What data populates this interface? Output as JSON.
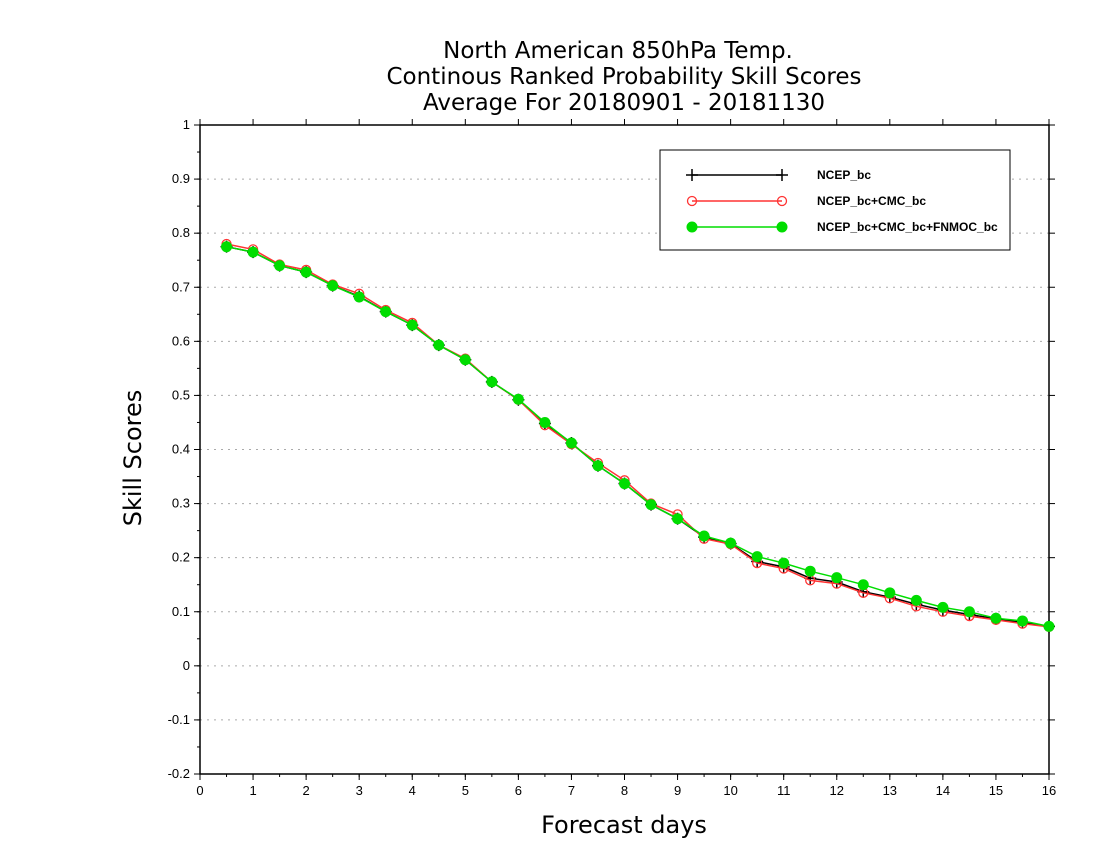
{
  "chart_data": {
    "type": "line",
    "title_lines": [
      "North American 850hPa Temp.",
      "Continous Ranked Probability Skill Scores",
      "Average For 20180901 - 20181130"
    ],
    "xlabel": "Forecast days",
    "ylabel": "Skill Scores",
    "xlim": [
      0,
      16
    ],
    "ylim": [
      -0.2,
      1
    ],
    "x_ticks": [
      0,
      1,
      2,
      3,
      4,
      5,
      6,
      7,
      8,
      9,
      10,
      11,
      12,
      13,
      14,
      15,
      16
    ],
    "x_tick_labels": [
      "0",
      "1",
      "2",
      "3",
      "4",
      "5",
      "6",
      "7",
      "8",
      "9",
      "10",
      "11",
      "12",
      "13",
      "14",
      "15",
      "16"
    ],
    "y_ticks": [
      -0.2,
      -0.1,
      0,
      0.1,
      0.2,
      0.3,
      0.4,
      0.5,
      0.6,
      0.7,
      0.8,
      0.9,
      1
    ],
    "y_tick_labels": [
      "-0.2",
      "-0.1",
      "0",
      "0.1",
      "0.2",
      "0.3",
      "0.4",
      "0.5",
      "0.6",
      "0.7",
      "0.8",
      "0.9",
      "1"
    ],
    "grid": "horizontal dotted",
    "legend_position": "top-right",
    "x": [
      0.5,
      1,
      1.5,
      2,
      2.5,
      3,
      3.5,
      4,
      4.5,
      5,
      5.5,
      6,
      6.5,
      7,
      7.5,
      8,
      8.5,
      9,
      9.5,
      10,
      10.5,
      11,
      11.5,
      12,
      12.5,
      13,
      13.5,
      14,
      14.5,
      15,
      15.5,
      16
    ],
    "series": [
      {
        "name": "NCEP_bc",
        "color": "#000000",
        "marker": "plus",
        "values": [
          0.775,
          0.765,
          0.74,
          0.728,
          0.703,
          0.683,
          0.655,
          0.63,
          0.593,
          0.566,
          0.525,
          0.492,
          0.448,
          0.412,
          0.37,
          0.337,
          0.298,
          0.272,
          0.238,
          0.226,
          0.193,
          0.183,
          0.162,
          0.155,
          0.137,
          0.127,
          0.114,
          0.103,
          0.095,
          0.087,
          0.08,
          0.073
        ]
      },
      {
        "name": "NCEP_bc+CMC_bc",
        "color": "#ff3333",
        "marker": "open-circle",
        "values": [
          0.78,
          0.77,
          0.742,
          0.732,
          0.705,
          0.688,
          0.658,
          0.634,
          0.593,
          0.568,
          0.525,
          0.492,
          0.445,
          0.41,
          0.375,
          0.343,
          0.3,
          0.28,
          0.235,
          0.225,
          0.19,
          0.18,
          0.158,
          0.152,
          0.135,
          0.125,
          0.11,
          0.1,
          0.092,
          0.085,
          0.078,
          0.072
        ]
      },
      {
        "name": "NCEP_bc+CMC_bc+FNMOC_bc",
        "color": "#00dd00",
        "marker": "filled-circle",
        "values": [
          0.775,
          0.765,
          0.74,
          0.728,
          0.703,
          0.682,
          0.655,
          0.63,
          0.593,
          0.566,
          0.525,
          0.493,
          0.45,
          0.412,
          0.37,
          0.337,
          0.298,
          0.272,
          0.24,
          0.227,
          0.202,
          0.19,
          0.175,
          0.163,
          0.15,
          0.135,
          0.121,
          0.108,
          0.1,
          0.088,
          0.083,
          0.073
        ]
      }
    ]
  }
}
